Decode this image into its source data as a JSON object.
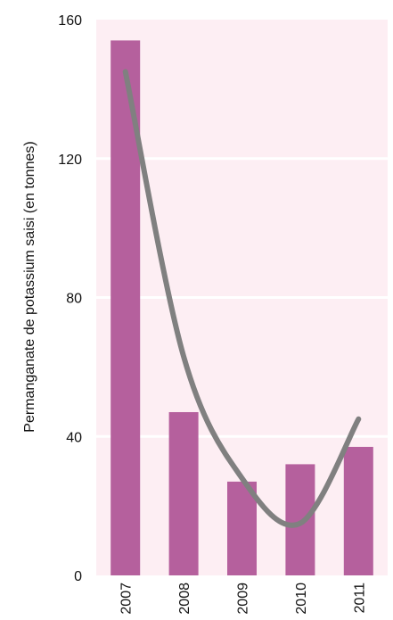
{
  "chart_data": {
    "type": "bar",
    "title": "",
    "xlabel": "",
    "ylabel": "Permanganate de potassium saisi (en tonnes)",
    "categories": [
      "2007",
      "2008",
      "2009",
      "2010",
      "2011"
    ],
    "values": [
      154,
      47,
      27,
      32,
      37
    ],
    "trendline": {
      "type": "polynomial",
      "x": [
        "2007",
        "2008",
        "2009",
        "2010",
        "2011"
      ],
      "y": [
        145,
        63,
        28,
        15,
        45
      ]
    },
    "ylim": [
      0,
      160
    ],
    "yticks": [
      0,
      40,
      80,
      120,
      160
    ],
    "grid": true,
    "legend": "none",
    "colors": {
      "bar": "#b5609d",
      "trend": "#808080",
      "plot_background": "#fdeef3",
      "gridline": "#ffffff"
    }
  }
}
